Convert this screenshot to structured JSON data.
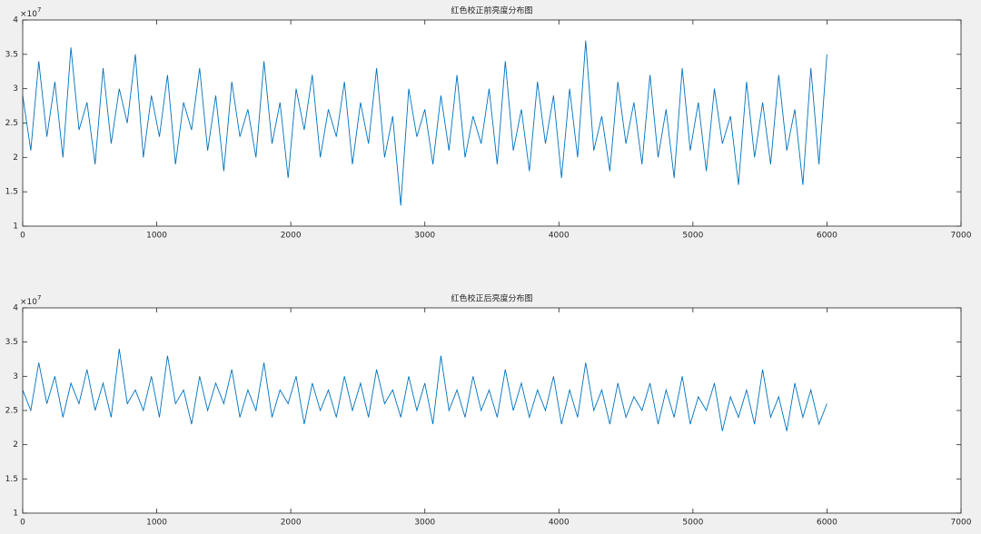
{
  "chart_data": [
    {
      "type": "line",
      "title": "红色校正前亮度分布图",
      "y_multiplier": {
        "base": "×10",
        "exponent": "7"
      },
      "x": [
        0,
        60,
        120,
        180,
        240,
        300,
        360,
        420,
        480,
        540,
        600,
        660,
        720,
        780,
        840,
        900,
        960,
        1020,
        1080,
        1140,
        1200,
        1260,
        1320,
        1380,
        1440,
        1500,
        1560,
        1620,
        1680,
        1740,
        1800,
        1860,
        1920,
        1980,
        2040,
        2100,
        2160,
        2220,
        2280,
        2340,
        2400,
        2460,
        2520,
        2580,
        2640,
        2700,
        2760,
        2820,
        2880,
        2940,
        3000,
        3060,
        3120,
        3180,
        3240,
        3300,
        3360,
        3420,
        3480,
        3540,
        3600,
        3660,
        3720,
        3780,
        3840,
        3900,
        3960,
        4020,
        4080,
        4140,
        4200,
        4260,
        4320,
        4380,
        4440,
        4500,
        4560,
        4620,
        4680,
        4740,
        4800,
        4860,
        4920,
        4980,
        5040,
        5100,
        5160,
        5220,
        5280,
        5340,
        5400,
        5460,
        5520,
        5580,
        5640,
        5700,
        5760,
        5820,
        5880,
        5940,
        6000
      ],
      "values": [
        2.9,
        2.1,
        3.4,
        2.3,
        3.1,
        2.0,
        3.6,
        2.4,
        2.8,
        1.9,
        3.3,
        2.2,
        3.0,
        2.5,
        3.5,
        2.0,
        2.9,
        2.3,
        3.2,
        1.9,
        2.8,
        2.4,
        3.3,
        2.1,
        2.9,
        1.8,
        3.1,
        2.3,
        2.7,
        2.0,
        3.4,
        2.2,
        2.8,
        1.7,
        3.0,
        2.4,
        3.2,
        2.0,
        2.7,
        2.3,
        3.1,
        1.9,
        2.8,
        2.2,
        3.3,
        2.0,
        2.6,
        1.3,
        3.0,
        2.3,
        2.7,
        1.9,
        2.9,
        2.1,
        3.2,
        2.0,
        2.6,
        2.2,
        3.0,
        1.9,
        3.4,
        2.1,
        2.7,
        1.8,
        3.1,
        2.2,
        2.9,
        1.7,
        3.0,
        2.0,
        3.7,
        2.1,
        2.6,
        1.8,
        3.1,
        2.2,
        2.8,
        1.9,
        3.2,
        2.0,
        2.7,
        1.7,
        3.3,
        2.1,
        2.8,
        1.8,
        3.0,
        2.2,
        2.6,
        1.6,
        3.1,
        2.0,
        2.8,
        1.9,
        3.2,
        2.1,
        2.7,
        1.6,
        3.3,
        1.9,
        3.5
      ],
      "color": "#0072bd",
      "xlim": [
        0,
        7000
      ],
      "xticks": [
        0,
        1000,
        2000,
        3000,
        4000,
        5000,
        6000,
        7000
      ],
      "ylim": [
        1,
        4
      ],
      "yticks": [
        1,
        1.5,
        2,
        2.5,
        3,
        3.5,
        4
      ],
      "grid": false
    },
    {
      "type": "line",
      "title": "红色校正后亮度分布图",
      "y_multiplier": {
        "base": "×10",
        "exponent": "7"
      },
      "x": [
        0,
        60,
        120,
        180,
        240,
        300,
        360,
        420,
        480,
        540,
        600,
        660,
        720,
        780,
        840,
        900,
        960,
        1020,
        1080,
        1140,
        1200,
        1260,
        1320,
        1380,
        1440,
        1500,
        1560,
        1620,
        1680,
        1740,
        1800,
        1860,
        1920,
        1980,
        2040,
        2100,
        2160,
        2220,
        2280,
        2340,
        2400,
        2460,
        2520,
        2580,
        2640,
        2700,
        2760,
        2820,
        2880,
        2940,
        3000,
        3060,
        3120,
        3180,
        3240,
        3300,
        3360,
        3420,
        3480,
        3540,
        3600,
        3660,
        3720,
        3780,
        3840,
        3900,
        3960,
        4020,
        4080,
        4140,
        4200,
        4260,
        4320,
        4380,
        4440,
        4500,
        4560,
        4620,
        4680,
        4740,
        4800,
        4860,
        4920,
        4980,
        5040,
        5100,
        5160,
        5220,
        5280,
        5340,
        5400,
        5460,
        5520,
        5580,
        5640,
        5700,
        5760,
        5820,
        5880,
        5940,
        6000
      ],
      "values": [
        2.8,
        2.5,
        3.2,
        2.6,
        3.0,
        2.4,
        2.9,
        2.6,
        3.1,
        2.5,
        2.9,
        2.4,
        3.4,
        2.6,
        2.8,
        2.5,
        3.0,
        2.4,
        3.3,
        2.6,
        2.8,
        2.3,
        3.0,
        2.5,
        2.9,
        2.6,
        3.1,
        2.4,
        2.8,
        2.5,
        3.2,
        2.4,
        2.8,
        2.6,
        3.0,
        2.3,
        2.9,
        2.5,
        2.8,
        2.4,
        3.0,
        2.5,
        2.9,
        2.4,
        3.1,
        2.6,
        2.8,
        2.4,
        3.0,
        2.5,
        2.9,
        2.3,
        3.3,
        2.5,
        2.8,
        2.4,
        3.0,
        2.5,
        2.8,
        2.4,
        3.1,
        2.5,
        2.9,
        2.4,
        2.8,
        2.5,
        3.0,
        2.3,
        2.8,
        2.4,
        3.2,
        2.5,
        2.8,
        2.3,
        2.9,
        2.4,
        2.7,
        2.5,
        2.9,
        2.3,
        2.8,
        2.4,
        3.0,
        2.3,
        2.7,
        2.5,
        2.9,
        2.2,
        2.7,
        2.4,
        2.8,
        2.3,
        3.1,
        2.4,
        2.7,
        2.2,
        2.9,
        2.4,
        2.8,
        2.3,
        2.6
      ],
      "color": "#0072bd",
      "xlim": [
        0,
        7000
      ],
      "xticks": [
        0,
        1000,
        2000,
        3000,
        4000,
        5000,
        6000,
        7000
      ],
      "ylim": [
        1,
        4
      ],
      "yticks": [
        1,
        1.5,
        2,
        2.5,
        3,
        3.5,
        4
      ],
      "grid": false
    }
  ]
}
